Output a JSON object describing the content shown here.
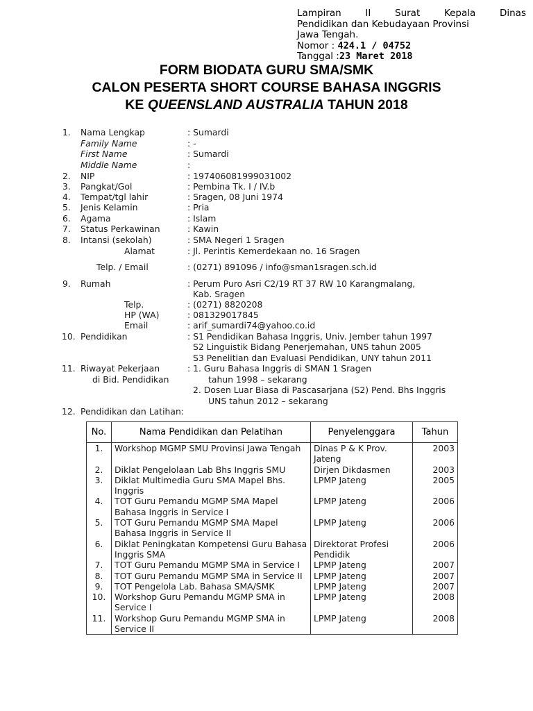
{
  "header_note": {
    "line1_words": [
      "Lampiran",
      "II",
      "Surat",
      "Kepala",
      "Dinas"
    ],
    "line2": "Pendidikan dan Kebudayaan Provinsi",
    "line3": "Jawa Tengah.",
    "nomor_label": "Nomor :",
    "nomor_value": "424.1 / 04752",
    "tanggal_label": "Tanggal :",
    "tanggal_value": "23 Maret 2018"
  },
  "title": {
    "line1": "FORM BIODATA GURU SMA/SMK",
    "line2": "CALON PESERTA SHORT COURSE BAHASA INGGRIS",
    "line3_prefix": "KE",
    "line3_italic": "QUEENSLAND AUSTRALIA",
    "line3_suffix": "TAHUN 2018"
  },
  "fields": [
    {
      "num": "1.",
      "label": "Nama Lengkap",
      "value": ": Sumardi"
    },
    {
      "num": "",
      "label": "Family Name",
      "value": ": -",
      "italic": true
    },
    {
      "num": "",
      "label": "First Name",
      "value": ": Sumardi",
      "italic": true
    },
    {
      "num": "",
      "label": "Middle Name",
      "value": ":",
      "italic": true
    },
    {
      "num": "2.",
      "label": "NIP",
      "value": ": 197406081999031002"
    },
    {
      "num": "3.",
      "label": "Pangkat/Gol",
      "value": ": Pembina Tk. I / IV.b"
    },
    {
      "num": "4.",
      "label": "Tempat/tgl lahir",
      "value": ": Sragen, 08 Juni 1974"
    },
    {
      "num": "5.",
      "label": "Jenis Kelamin",
      "value": ": Pria"
    },
    {
      "num": "6.",
      "label": "Agama",
      "value": ": Islam"
    },
    {
      "num": "7.",
      "label": "Status Perkawinan",
      "value": ": Kawin"
    },
    {
      "num": "8.",
      "label": "Intansi (sekolah)",
      "value": ": SMA Negeri 1 Sragen"
    },
    {
      "num": "",
      "label": "Alamat",
      "value": ": Jl. Perintis Kemerdekaan no. 16 Sragen"
    },
    {
      "num": "",
      "label": "Telp. / Email",
      "value": ":  (0271) 891096 / info@sman1sragen.sch.id"
    },
    {
      "num": "9.",
      "label": "Rumah",
      "value": ": Perum Puro Asri C2/19 RT 37 RW 10 Karangmalang,"
    },
    {
      "num": "",
      "label": "",
      "value": "Kab. Sragen"
    },
    {
      "num": "",
      "label": "Telp.",
      "value": ": (0271) 8820208"
    },
    {
      "num": "",
      "label": "HP (WA)",
      "value": ": 081329017845"
    },
    {
      "num": "",
      "label": "Email",
      "value": ": arif_sumardi74@yahoo.co.id"
    },
    {
      "num": "10.",
      "label": "Pendidikan",
      "value": ": S1 Pendidikan Bahasa Inggris, Univ. Jember tahun 1997"
    },
    {
      "num": "",
      "label": "",
      "value": "S2 Linguistik Bidang Penerjemahan, UNS tahun 2005"
    },
    {
      "num": "",
      "label": "",
      "value": "S3 Penelitian dan Evaluasi Pendidikan, UNY tahun 2011"
    },
    {
      "num": "11.",
      "label": "Riwayat Pekerjaan",
      "value": ": 1. Guru Bahasa Inggris di SMAN 1 Sragen"
    },
    {
      "num": "",
      "label": "di Bid. Pendidikan",
      "value": "tahun 1998 – sekarang"
    },
    {
      "num": "",
      "label": "",
      "value": "2. Dosen Luar Biasa di Pascasarjana (S2) Pend. Bhs Inggris"
    },
    {
      "num": "",
      "label": "",
      "value": "UNS tahun 2012 – sekarang"
    },
    {
      "num": "12.",
      "label": "Pendidikan dan Latihan:",
      "value": ""
    }
  ],
  "training_table": {
    "headers": [
      "No.",
      "Nama Pendidikan dan Pelatihan",
      "Penyelenggara",
      "Tahun"
    ],
    "rows": [
      [
        "1.",
        "Workshop MGMP SMU Provinsi Jawa Tengah",
        "Dinas P & K Prov. Jateng",
        "2003"
      ],
      [
        "2.",
        "Diklat Pengelolaan Lab Bhs Inggris SMU",
        "Dirjen Dikdasmen",
        "2003"
      ],
      [
        "3.",
        "Diklat Multimedia Guru SMA Mapel Bhs. Inggris",
        "LPMP Jateng",
        "2005"
      ],
      [
        "4.",
        "TOT Guru Pemandu MGMP SMA Mapel Bahasa Inggris in Service I",
        "LPMP Jateng",
        "2006"
      ],
      [
        "5.",
        "TOT Guru Pemandu MGMP SMA Mapel Bahasa Inggris in Service II",
        "LPMP Jateng",
        "2006"
      ],
      [
        "6.",
        "Diklat Peningkatan Kompetensi Guru Bahasa Inggris SMA",
        "Direktorat Profesi Pendidik",
        "2006"
      ],
      [
        "7.",
        "TOT Guru Pemandu MGMP SMA in Service I",
        "LPMP Jateng",
        "2007"
      ],
      [
        "8.",
        "TOT Guru Pemandu MGMP SMA in Service II",
        "LPMP Jateng",
        "2007"
      ],
      [
        "9.",
        "TOT Pengelola Lab. Bahasa SMA/SMK",
        "LPMP Jateng",
        "2007"
      ],
      [
        "10.",
        "Workshop Guru Pemandu MGMP SMA in Service I",
        "LPMP Jateng",
        "2008"
      ],
      [
        "11.",
        "Workshop Guru Pemandu MGMP SMA in Service II",
        "LPMP Jateng",
        "2008"
      ]
    ]
  }
}
